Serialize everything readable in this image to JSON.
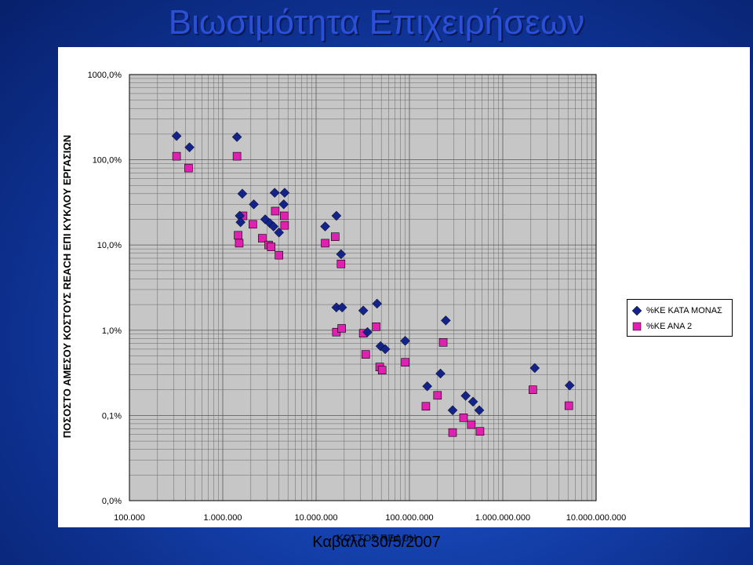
{
  "slide": {
    "title": "Βιωσιμότητα Επιχειρήσεων",
    "footer": "Καβάλα 30/5/2007"
  },
  "colors": {
    "series1": "#13238a",
    "series2": "#e020b0",
    "plot_bg": "#c6c6c6",
    "grid": "#666666"
  },
  "chart_data": {
    "type": "scatter",
    "title": "Βιωσιμότητα Επιχειρήσεων",
    "xlabel": "ΚΟΣΤΟΣ REACH",
    "ylabel": "ΠΟΣΟΣΤΟ ΑΜΕΣΟΥ ΚΟΣΤΟΥΣ REACH ΕΠΙ ΚΥΚΛΟΥ ΕΡΓΑΣΙΩΝ",
    "x_scale": "log",
    "y_scale": "log",
    "xlim": [
      100000,
      10000000000
    ],
    "ylim": [
      0.01,
      1000
    ],
    "grid": true,
    "legend_position": "right",
    "x_tick_values": [
      100000,
      1000000,
      10000000,
      100000000,
      1000000000,
      10000000000
    ],
    "x_tick_labels": [
      "100.000",
      "1.000.000",
      "10.000.000",
      "100.000.000",
      "1.000.000.000",
      "10.000.000.000"
    ],
    "y_tick_values": [
      1000,
      100,
      10,
      1,
      0.1,
      0.01
    ],
    "y_tick_labels": [
      "1000,0%",
      "100,0%",
      "10,0%",
      "1,0%",
      "0,1%",
      "0,0%"
    ],
    "series": [
      {
        "name": "%ΚΕ ΚΑΤΑ ΜΟΝΑΣ",
        "marker": "diamond",
        "points": [
          [
            320000,
            190
          ],
          [
            440000,
            140
          ],
          [
            1420000,
            185
          ],
          [
            1520000,
            22
          ],
          [
            1550000,
            18.5
          ],
          [
            1620000,
            40
          ],
          [
            2150000,
            30
          ],
          [
            2850000,
            20
          ],
          [
            3200000,
            18
          ],
          [
            3500000,
            16.5
          ],
          [
            3600000,
            41
          ],
          [
            4000000,
            14
          ],
          [
            4500000,
            30
          ],
          [
            4600000,
            41
          ],
          [
            12500000,
            16.5
          ],
          [
            16500000,
            22
          ],
          [
            18500000,
            7.8
          ],
          [
            16500000,
            1.85
          ],
          [
            19000000,
            1.85
          ],
          [
            32000000,
            1.7
          ],
          [
            35500000,
            0.95
          ],
          [
            45000000,
            2.05
          ],
          [
            49000000,
            0.65
          ],
          [
            55000000,
            0.6
          ],
          [
            90000000,
            0.75
          ],
          [
            155000000,
            0.22
          ],
          [
            215000000,
            0.31
          ],
          [
            245000000,
            1.3
          ],
          [
            290000000,
            0.115
          ],
          [
            400000000,
            0.17
          ],
          [
            480000000,
            0.145
          ],
          [
            560000000,
            0.115
          ],
          [
            2200000000,
            0.36
          ],
          [
            5200000000,
            0.225
          ]
        ]
      },
      {
        "name": "%ΚΕ ΑΝΑ 2",
        "marker": "square",
        "points": [
          [
            320000,
            110
          ],
          [
            430000,
            80
          ],
          [
            1420000,
            110
          ],
          [
            1460000,
            13
          ],
          [
            1500000,
            10.5
          ],
          [
            1650000,
            22
          ],
          [
            2100000,
            17.5
          ],
          [
            2650000,
            12
          ],
          [
            3100000,
            10
          ],
          [
            3300000,
            9.5
          ],
          [
            3650000,
            25
          ],
          [
            4000000,
            7.6
          ],
          [
            4550000,
            22
          ],
          [
            4600000,
            17
          ],
          [
            12500000,
            10.5
          ],
          [
            16000000,
            12.5
          ],
          [
            18500000,
            6
          ],
          [
            16500000,
            0.95
          ],
          [
            18800000,
            1.05
          ],
          [
            32000000,
            0.92
          ],
          [
            34000000,
            0.52
          ],
          [
            44000000,
            1.1
          ],
          [
            48000000,
            0.37
          ],
          [
            51000000,
            0.34
          ],
          [
            90000000,
            0.42
          ],
          [
            150000000,
            0.128
          ],
          [
            200000000,
            0.172
          ],
          [
            230000000,
            0.72
          ],
          [
            290000000,
            0.063
          ],
          [
            380000000,
            0.094
          ],
          [
            460000000,
            0.078
          ],
          [
            570000000,
            0.065
          ],
          [
            2100000000,
            0.2
          ],
          [
            5100000000,
            0.13
          ]
        ]
      }
    ]
  }
}
